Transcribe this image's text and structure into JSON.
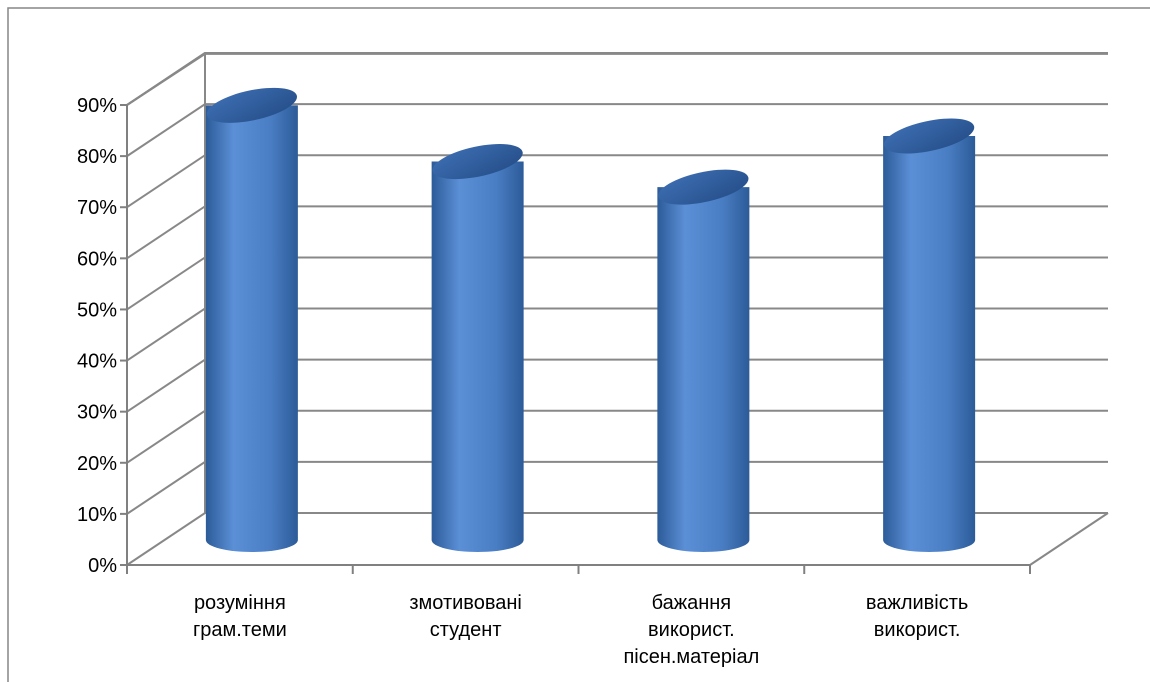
{
  "chart_data": {
    "type": "bar",
    "style": "3d-cylinder",
    "title": "",
    "xlabel": "",
    "ylabel": "",
    "categories": [
      [
        "розуміння",
        "грам.теми"
      ],
      [
        "змотивовані",
        "студент"
      ],
      [
        "бажання",
        "використ.",
        "пісен.матеріал"
      ],
      [
        "важливість",
        "використ."
      ]
    ],
    "values": [
      87,
      76,
      71,
      81
    ],
    "ylim": [
      0,
      90
    ],
    "ytick_values": [
      0,
      10,
      20,
      30,
      40,
      50,
      60,
      70,
      80,
      90
    ],
    "ytick_labels": [
      "0%",
      "10%",
      "20%",
      "30%",
      "40%",
      "50%",
      "60%",
      "70%",
      "80%",
      "90%"
    ],
    "grid": true,
    "legend": "none",
    "colors": {
      "bar_light": "#5b8fd6",
      "bar_mid": "#4a7ec4",
      "bar_dark": "#2c5b98",
      "top_light": "#3e6fb4",
      "top_dark": "#244d87",
      "gridline": "#888888",
      "axis": "#808080",
      "frame": "#868686"
    }
  }
}
